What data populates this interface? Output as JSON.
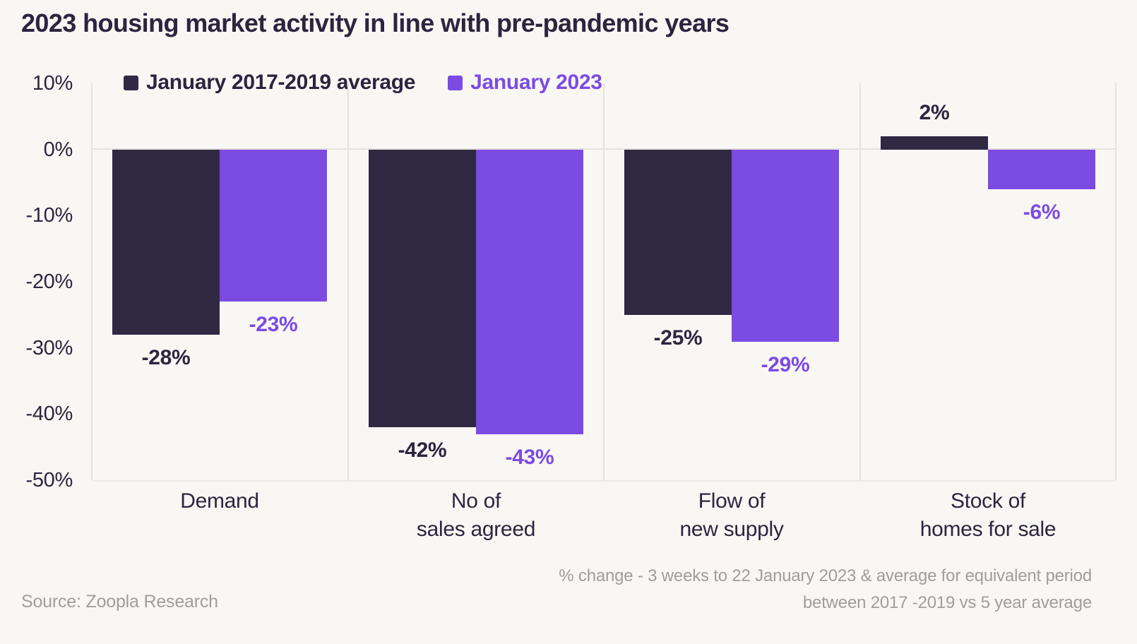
{
  "title": "2023 housing market activity in line with pre-pandemic years",
  "chart_data": {
    "type": "bar",
    "categories": [
      [
        "Demand"
      ],
      [
        "No of",
        "sales agreed"
      ],
      [
        "Flow of",
        "new supply"
      ],
      [
        "Stock of",
        "homes for sale"
      ]
    ],
    "series": [
      {
        "name": "January 2017-2019 average",
        "color": "#2F2944",
        "values": [
          -28,
          -42,
          -25,
          2
        ],
        "labels": [
          "-28%",
          "-42%",
          "-25%",
          "2%"
        ]
      },
      {
        "name": "January 2023",
        "color": "#7B4BE4",
        "values": [
          -23,
          -43,
          -29,
          -6
        ],
        "labels": [
          "-23%",
          "-43%",
          "-29%",
          "-6%"
        ]
      }
    ],
    "y_ticks": [
      "10%",
      "0%",
      "-10%",
      "-20%",
      "-30%",
      "-40%",
      "-50%"
    ],
    "y_tick_values": [
      10,
      0,
      -10,
      -20,
      -30,
      -40,
      -50
    ],
    "ylim": [
      -50,
      10
    ],
    "unit": "%",
    "legend_position": "top",
    "grid": "vertical group separators, zero line and baseline"
  },
  "footer": {
    "source": "Source: Zoopla Research",
    "note_line1": "% change - 3 weeks to 22 January 2023 & average for equivalent period",
    "note_line2": "between 2017 -2019 vs 5 year average"
  },
  "colors": {
    "background": "#F9F7F3",
    "series_dark": "#2F2944",
    "series_purple": "#7B4BE4",
    "text_dark": "#2B2540",
    "grid_line": "#E6E2DE",
    "baseline": "#ECE8E4",
    "muted_text": "#A09D9A"
  }
}
